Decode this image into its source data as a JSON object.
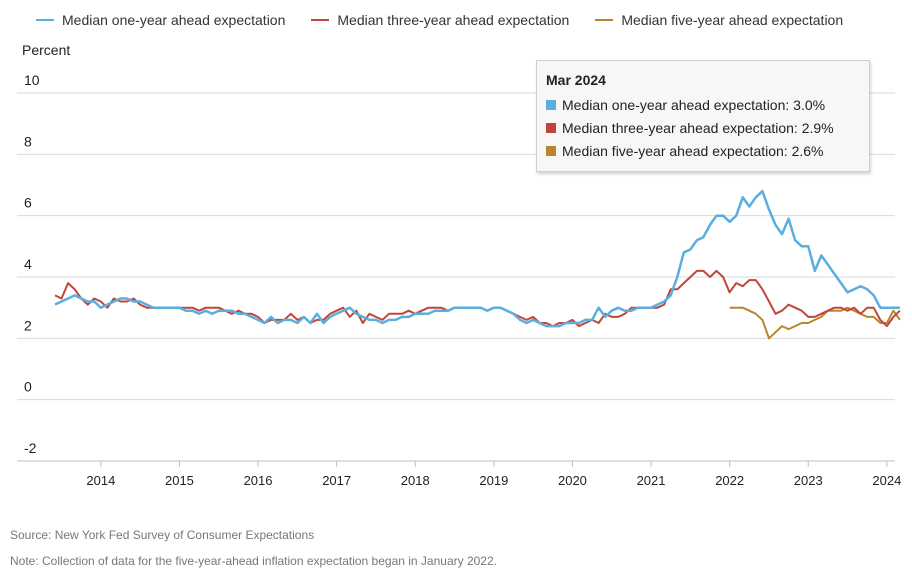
{
  "chart_data": {
    "type": "line",
    "ylabel": "Percent",
    "ylim": [
      -2,
      10
    ],
    "yticks": [
      10,
      8,
      6,
      4,
      2,
      0,
      -2
    ],
    "xlim": [
      "2013-06",
      "2024-03"
    ],
    "xticks": [
      "2014",
      "2015",
      "2016",
      "2017",
      "2018",
      "2019",
      "2020",
      "2021",
      "2022",
      "2023",
      "2024"
    ],
    "grid": "horizontal",
    "legend_position": "top",
    "series": [
      {
        "name": "Median one-year ahead expectation",
        "color": "#5aaee0",
        "points": [
          [
            "2013-06",
            3.1
          ],
          [
            "2013-07",
            3.2
          ],
          [
            "2013-08",
            3.3
          ],
          [
            "2013-09",
            3.4
          ],
          [
            "2013-10",
            3.3
          ],
          [
            "2013-11",
            3.2
          ],
          [
            "2013-12",
            3.2
          ],
          [
            "2014-01",
            3.0
          ],
          [
            "2014-02",
            3.1
          ],
          [
            "2014-03",
            3.2
          ],
          [
            "2014-04",
            3.3
          ],
          [
            "2014-05",
            3.3
          ],
          [
            "2014-06",
            3.2
          ],
          [
            "2014-07",
            3.2
          ],
          [
            "2014-08",
            3.1
          ],
          [
            "2014-09",
            3.0
          ],
          [
            "2014-10",
            3.0
          ],
          [
            "2014-11",
            3.0
          ],
          [
            "2014-12",
            3.0
          ],
          [
            "2015-01",
            3.0
          ],
          [
            "2015-02",
            2.9
          ],
          [
            "2015-03",
            2.9
          ],
          [
            "2015-04",
            2.8
          ],
          [
            "2015-05",
            2.9
          ],
          [
            "2015-06",
            2.8
          ],
          [
            "2015-07",
            2.9
          ],
          [
            "2015-08",
            2.9
          ],
          [
            "2015-09",
            2.9
          ],
          [
            "2015-10",
            2.8
          ],
          [
            "2015-11",
            2.8
          ],
          [
            "2015-12",
            2.7
          ],
          [
            "2016-01",
            2.6
          ],
          [
            "2016-02",
            2.5
          ],
          [
            "2016-03",
            2.7
          ],
          [
            "2016-04",
            2.5
          ],
          [
            "2016-05",
            2.6
          ],
          [
            "2016-06",
            2.6
          ],
          [
            "2016-07",
            2.5
          ],
          [
            "2016-08",
            2.7
          ],
          [
            "2016-09",
            2.5
          ],
          [
            "2016-10",
            2.8
          ],
          [
            "2016-11",
            2.5
          ],
          [
            "2016-12",
            2.7
          ],
          [
            "2017-01",
            2.8
          ],
          [
            "2017-02",
            2.9
          ],
          [
            "2017-03",
            3.0
          ],
          [
            "2017-04",
            2.8
          ],
          [
            "2017-05",
            2.7
          ],
          [
            "2017-06",
            2.6
          ],
          [
            "2017-07",
            2.6
          ],
          [
            "2017-08",
            2.5
          ],
          [
            "2017-09",
            2.6
          ],
          [
            "2017-10",
            2.6
          ],
          [
            "2017-11",
            2.7
          ],
          [
            "2017-12",
            2.7
          ],
          [
            "2018-01",
            2.8
          ],
          [
            "2018-02",
            2.8
          ],
          [
            "2018-03",
            2.8
          ],
          [
            "2018-04",
            2.9
          ],
          [
            "2018-05",
            2.9
          ],
          [
            "2018-06",
            2.9
          ],
          [
            "2018-07",
            3.0
          ],
          [
            "2018-08",
            3.0
          ],
          [
            "2018-09",
            3.0
          ],
          [
            "2018-10",
            3.0
          ],
          [
            "2018-11",
            3.0
          ],
          [
            "2018-12",
            2.9
          ],
          [
            "2019-01",
            3.0
          ],
          [
            "2019-02",
            3.0
          ],
          [
            "2019-03",
            2.9
          ],
          [
            "2019-04",
            2.8
          ],
          [
            "2019-05",
            2.6
          ],
          [
            "2019-06",
            2.5
          ],
          [
            "2019-07",
            2.6
          ],
          [
            "2019-08",
            2.5
          ],
          [
            "2019-09",
            2.4
          ],
          [
            "2019-10",
            2.4
          ],
          [
            "2019-11",
            2.4
          ],
          [
            "2019-12",
            2.5
          ],
          [
            "2020-01",
            2.5
          ],
          [
            "2020-02",
            2.5
          ],
          [
            "2020-03",
            2.6
          ],
          [
            "2020-04",
            2.6
          ],
          [
            "2020-05",
            3.0
          ],
          [
            "2020-06",
            2.7
          ],
          [
            "2020-07",
            2.9
          ],
          [
            "2020-08",
            3.0
          ],
          [
            "2020-09",
            2.9
          ],
          [
            "2020-10",
            2.9
          ],
          [
            "2020-11",
            3.0
          ],
          [
            "2020-12",
            3.0
          ],
          [
            "2021-01",
            3.0
          ],
          [
            "2021-02",
            3.1
          ],
          [
            "2021-03",
            3.2
          ],
          [
            "2021-04",
            3.4
          ],
          [
            "2021-05",
            4.0
          ],
          [
            "2021-06",
            4.8
          ],
          [
            "2021-07",
            4.9
          ],
          [
            "2021-08",
            5.2
          ],
          [
            "2021-09",
            5.3
          ],
          [
            "2021-10",
            5.7
          ],
          [
            "2021-11",
            6.0
          ],
          [
            "2021-12",
            6.0
          ],
          [
            "2022-01",
            5.8
          ],
          [
            "2022-02",
            6.0
          ],
          [
            "2022-03",
            6.6
          ],
          [
            "2022-04",
            6.3
          ],
          [
            "2022-05",
            6.6
          ],
          [
            "2022-06",
            6.8
          ],
          [
            "2022-07",
            6.2
          ],
          [
            "2022-08",
            5.7
          ],
          [
            "2022-09",
            5.4
          ],
          [
            "2022-10",
            5.9
          ],
          [
            "2022-11",
            5.2
          ],
          [
            "2022-12",
            5.0
          ],
          [
            "2023-01",
            5.0
          ],
          [
            "2023-02",
            4.2
          ],
          [
            "2023-03",
            4.7
          ],
          [
            "2023-04",
            4.4
          ],
          [
            "2023-05",
            4.1
          ],
          [
            "2023-06",
            3.8
          ],
          [
            "2023-07",
            3.5
          ],
          [
            "2023-08",
            3.6
          ],
          [
            "2023-09",
            3.7
          ],
          [
            "2023-10",
            3.6
          ],
          [
            "2023-11",
            3.4
          ],
          [
            "2023-12",
            3.0
          ],
          [
            "2024-01",
            3.0
          ],
          [
            "2024-02",
            3.0
          ],
          [
            "2024-03",
            3.0
          ]
        ]
      },
      {
        "name": "Median three-year ahead expectation",
        "color": "#c0463a",
        "points": [
          [
            "2013-06",
            3.4
          ],
          [
            "2013-07",
            3.3
          ],
          [
            "2013-08",
            3.8
          ],
          [
            "2013-09",
            3.6
          ],
          [
            "2013-10",
            3.3
          ],
          [
            "2013-11",
            3.1
          ],
          [
            "2013-12",
            3.3
          ],
          [
            "2014-01",
            3.2
          ],
          [
            "2014-02",
            3.0
          ],
          [
            "2014-03",
            3.3
          ],
          [
            "2014-04",
            3.2
          ],
          [
            "2014-05",
            3.2
          ],
          [
            "2014-06",
            3.3
          ],
          [
            "2014-07",
            3.1
          ],
          [
            "2014-08",
            3.0
          ],
          [
            "2014-09",
            3.0
          ],
          [
            "2014-10",
            3.0
          ],
          [
            "2014-11",
            3.0
          ],
          [
            "2014-12",
            3.0
          ],
          [
            "2015-01",
            3.0
          ],
          [
            "2015-02",
            3.0
          ],
          [
            "2015-03",
            3.0
          ],
          [
            "2015-04",
            2.9
          ],
          [
            "2015-05",
            3.0
          ],
          [
            "2015-06",
            3.0
          ],
          [
            "2015-07",
            3.0
          ],
          [
            "2015-08",
            2.9
          ],
          [
            "2015-09",
            2.8
          ],
          [
            "2015-10",
            2.9
          ],
          [
            "2015-11",
            2.8
          ],
          [
            "2015-12",
            2.8
          ],
          [
            "2016-01",
            2.7
          ],
          [
            "2016-02",
            2.5
          ],
          [
            "2016-03",
            2.6
          ],
          [
            "2016-04",
            2.6
          ],
          [
            "2016-05",
            2.6
          ],
          [
            "2016-06",
            2.8
          ],
          [
            "2016-07",
            2.6
          ],
          [
            "2016-08",
            2.7
          ],
          [
            "2016-09",
            2.5
          ],
          [
            "2016-10",
            2.6
          ],
          [
            "2016-11",
            2.6
          ],
          [
            "2016-12",
            2.8
          ],
          [
            "2017-01",
            2.9
          ],
          [
            "2017-02",
            3.0
          ],
          [
            "2017-03",
            2.7
          ],
          [
            "2017-04",
            2.9
          ],
          [
            "2017-05",
            2.5
          ],
          [
            "2017-06",
            2.8
          ],
          [
            "2017-07",
            2.7
          ],
          [
            "2017-08",
            2.6
          ],
          [
            "2017-09",
            2.8
          ],
          [
            "2017-10",
            2.8
          ],
          [
            "2017-11",
            2.8
          ],
          [
            "2017-12",
            2.9
          ],
          [
            "2018-01",
            2.8
          ],
          [
            "2018-02",
            2.9
          ],
          [
            "2018-03",
            3.0
          ],
          [
            "2018-04",
            3.0
          ],
          [
            "2018-05",
            3.0
          ],
          [
            "2018-06",
            2.9
          ],
          [
            "2018-07",
            3.0
          ],
          [
            "2018-08",
            3.0
          ],
          [
            "2018-09",
            3.0
          ],
          [
            "2018-10",
            3.0
          ],
          [
            "2018-11",
            3.0
          ],
          [
            "2018-12",
            2.9
          ],
          [
            "2019-01",
            3.0
          ],
          [
            "2019-02",
            3.0
          ],
          [
            "2019-03",
            2.9
          ],
          [
            "2019-04",
            2.8
          ],
          [
            "2019-05",
            2.7
          ],
          [
            "2019-06",
            2.6
          ],
          [
            "2019-07",
            2.7
          ],
          [
            "2019-08",
            2.5
          ],
          [
            "2019-09",
            2.5
          ],
          [
            "2019-10",
            2.4
          ],
          [
            "2019-11",
            2.5
          ],
          [
            "2019-12",
            2.5
          ],
          [
            "2020-01",
            2.6
          ],
          [
            "2020-02",
            2.4
          ],
          [
            "2020-03",
            2.5
          ],
          [
            "2020-04",
            2.6
          ],
          [
            "2020-05",
            2.5
          ],
          [
            "2020-06",
            2.8
          ],
          [
            "2020-07",
            2.7
          ],
          [
            "2020-08",
            2.7
          ],
          [
            "2020-09",
            2.8
          ],
          [
            "2020-10",
            3.0
          ],
          [
            "2020-11",
            3.0
          ],
          [
            "2020-12",
            3.0
          ],
          [
            "2021-01",
            3.0
          ],
          [
            "2021-02",
            3.0
          ],
          [
            "2021-03",
            3.1
          ],
          [
            "2021-04",
            3.6
          ],
          [
            "2021-05",
            3.6
          ],
          [
            "2021-06",
            3.8
          ],
          [
            "2021-07",
            4.0
          ],
          [
            "2021-08",
            4.2
          ],
          [
            "2021-09",
            4.2
          ],
          [
            "2021-10",
            4.0
          ],
          [
            "2021-11",
            4.2
          ],
          [
            "2021-12",
            4.0
          ],
          [
            "2022-01",
            3.5
          ],
          [
            "2022-02",
            3.8
          ],
          [
            "2022-03",
            3.7
          ],
          [
            "2022-04",
            3.9
          ],
          [
            "2022-05",
            3.9
          ],
          [
            "2022-06",
            3.6
          ],
          [
            "2022-07",
            3.2
          ],
          [
            "2022-08",
            2.8
          ],
          [
            "2022-09",
            2.9
          ],
          [
            "2022-10",
            3.1
          ],
          [
            "2022-11",
            3.0
          ],
          [
            "2022-12",
            2.9
          ],
          [
            "2023-01",
            2.7
          ],
          [
            "2023-02",
            2.7
          ],
          [
            "2023-03",
            2.8
          ],
          [
            "2023-04",
            2.9
          ],
          [
            "2023-05",
            3.0
          ],
          [
            "2023-06",
            3.0
          ],
          [
            "2023-07",
            2.9
          ],
          [
            "2023-08",
            3.0
          ],
          [
            "2023-09",
            2.8
          ],
          [
            "2023-10",
            3.0
          ],
          [
            "2023-11",
            3.0
          ],
          [
            "2023-12",
            2.6
          ],
          [
            "2024-01",
            2.4
          ],
          [
            "2024-02",
            2.7
          ],
          [
            "2024-03",
            2.9
          ]
        ]
      },
      {
        "name": "Median five-year ahead expectation",
        "color": "#b8862b",
        "points": [
          [
            "2022-01",
            3.0
          ],
          [
            "2022-02",
            3.0
          ],
          [
            "2022-03",
            3.0
          ],
          [
            "2022-04",
            2.9
          ],
          [
            "2022-05",
            2.8
          ],
          [
            "2022-06",
            2.6
          ],
          [
            "2022-07",
            2.0
          ],
          [
            "2022-08",
            2.2
          ],
          [
            "2022-09",
            2.4
          ],
          [
            "2022-10",
            2.3
          ],
          [
            "2022-11",
            2.4
          ],
          [
            "2022-12",
            2.5
          ],
          [
            "2023-01",
            2.5
          ],
          [
            "2023-02",
            2.6
          ],
          [
            "2023-03",
            2.7
          ],
          [
            "2023-04",
            2.9
          ],
          [
            "2023-05",
            2.9
          ],
          [
            "2023-06",
            2.9
          ],
          [
            "2023-07",
            3.0
          ],
          [
            "2023-08",
            2.9
          ],
          [
            "2023-09",
            2.8
          ],
          [
            "2023-10",
            2.7
          ],
          [
            "2023-11",
            2.7
          ],
          [
            "2023-12",
            2.5
          ],
          [
            "2024-01",
            2.5
          ],
          [
            "2024-02",
            2.9
          ],
          [
            "2024-03",
            2.6
          ]
        ]
      }
    ]
  },
  "tooltip": {
    "title": "Mar 2024",
    "rows": [
      {
        "text": "Median one-year ahead expectation: 3.0%",
        "color": "#5aaee0"
      },
      {
        "text": "Median three-year ahead expectation: 2.9%",
        "color": "#c0463a"
      },
      {
        "text": "Median five-year ahead expectation: 2.6%",
        "color": "#b8862b"
      }
    ]
  },
  "footnotes": {
    "source": "Source: New York Fed Survey of Consumer Expectations",
    "note": "Note: Collection of data for the five-year-ahead inflation expectation began in January 2022."
  }
}
